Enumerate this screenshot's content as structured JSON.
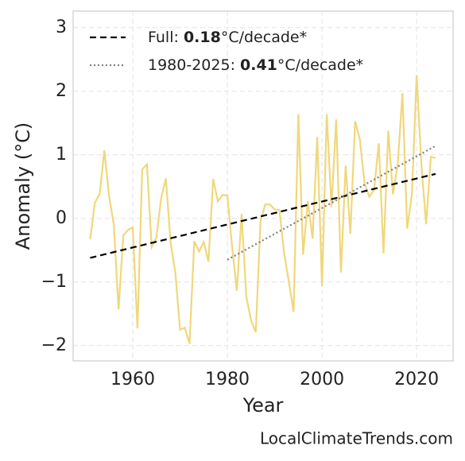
{
  "chart_data": {
    "type": "line",
    "x": [
      1951,
      1952,
      1953,
      1954,
      1955,
      1956,
      1957,
      1958,
      1959,
      1960,
      1961,
      1962,
      1963,
      1964,
      1965,
      1966,
      1967,
      1968,
      1969,
      1970,
      1971,
      1972,
      1973,
      1974,
      1975,
      1976,
      1977,
      1978,
      1979,
      1980,
      1981,
      1982,
      1983,
      1984,
      1985,
      1986,
      1987,
      1988,
      1989,
      1990,
      1991,
      1992,
      1993,
      1994,
      1995,
      1996,
      1997,
      1998,
      1999,
      2000,
      2001,
      2002,
      2003,
      2004,
      2005,
      2006,
      2007,
      2008,
      2009,
      2010,
      2011,
      2012,
      2013,
      2014,
      2015,
      2016,
      2017,
      2018,
      2019,
      2020,
      2021,
      2022,
      2023,
      2024
    ],
    "series": [
      {
        "color": "#f0d77b",
        "values": [
          -0.33,
          0.25,
          0.38,
          1.07,
          0.35,
          -0.1,
          -1.43,
          -0.27,
          -0.18,
          -0.14,
          -1.73,
          0.77,
          0.85,
          -0.45,
          -0.3,
          0.32,
          0.63,
          -0.38,
          -0.85,
          -1.75,
          -1.72,
          -1.97,
          -0.36,
          -0.52,
          -0.37,
          -0.68,
          0.62,
          0.27,
          0.37,
          0.36,
          -0.45,
          -1.14,
          0.07,
          -1.23,
          -1.6,
          -1.79,
          -0.05,
          0.22,
          0.22,
          0.14,
          0.13,
          -0.55,
          -1.0,
          -1.47,
          1.64,
          -0.57,
          0.27,
          -0.32,
          1.28,
          -1.07,
          1.64,
          0.18,
          1.56,
          -0.85,
          0.83,
          -0.24,
          1.53,
          1.24,
          0.55,
          0.34,
          0.45,
          1.18,
          -0.55,
          1.38,
          0.38,
          0.85,
          1.97,
          -0.16,
          0.38,
          2.25,
          0.85,
          -0.09,
          0.97,
          0.95
        ]
      }
    ],
    "trends": [
      {
        "label_parts": [
          "Full: ",
          "0.18",
          "°C/decade*"
        ],
        "color": "#000000",
        "dash": "dashed",
        "x": [
          1951,
          2024
        ],
        "values": [
          -0.62,
          0.7
        ]
      },
      {
        "label_parts": [
          "1980-2025: ",
          "0.41",
          "°C/decade*"
        ],
        "color": "#808080",
        "dash": "dotted",
        "x": [
          1980,
          2024
        ],
        "values": [
          -0.65,
          1.14
        ]
      }
    ],
    "x_label": "Year",
    "y_label": "Anomaly (°C)",
    "xlim": [
      1947.4,
      2027.7
    ],
    "ylim": [
      -2.24,
      3.26
    ],
    "xticks": [
      1960,
      1980,
      2000,
      2020
    ],
    "yticks": [
      {
        "value": -2,
        "label": "−2"
      },
      {
        "value": -1,
        "label": "−1"
      },
      0,
      1,
      2,
      3
    ],
    "grid": true,
    "source": "LocalClimateTrends.com"
  }
}
